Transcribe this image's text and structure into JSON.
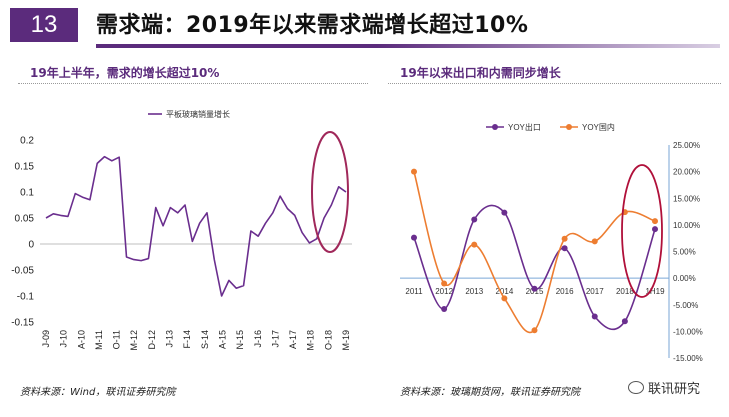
{
  "slide": {
    "number": "13",
    "title": "需求端：2019年以来需求端增长超过10%",
    "watermark": "联讯研究"
  },
  "panels": [
    {
      "title": "19年上半年，需求的增长超过10%",
      "source": "资料来源：Wind，联讯证券研究院"
    },
    {
      "title": "19年以来出口和内需同步增长",
      "source": "资料来源：玻璃期货网，联讯证券研究院"
    }
  ],
  "colors": {
    "accent": "#5b2b7c",
    "series_purple": "#6a2e8e",
    "series_orange": "#ed7d31",
    "highlight": "#a0285a",
    "ellipse_red": "#b0103a"
  },
  "chart_data": [
    {
      "type": "line",
      "title": "",
      "legend": "top-center",
      "series": [
        {
          "name": "平板玻璃销量增长",
          "values": [
            0.05,
            0.058,
            0.055,
            0.053,
            0.097,
            0.09,
            0.085,
            0.155,
            0.168,
            0.16,
            0.167,
            -0.025,
            -0.03,
            -0.032,
            -0.028,
            0.07,
            0.035,
            0.07,
            0.06,
            0.075,
            0.005,
            0.04,
            0.06,
            -0.03,
            -0.1,
            -0.07,
            -0.085,
            -0.08,
            0.025,
            0.015,
            0.04,
            0.06,
            0.092,
            0.068,
            0.055,
            0.022,
            0.002,
            0.01,
            0.05,
            0.075,
            0.11,
            0.1
          ]
        }
      ],
      "tick_labels": [
        "J-09",
        "J-10",
        "A-10",
        "M-11",
        "O-11",
        "M-12",
        "D-12",
        "J-13",
        "F-14",
        "S-14",
        "A-15",
        "N-15",
        "J-16",
        "J-17",
        "A-17",
        "M-18",
        "O-18",
        "M-19"
      ],
      "y_ticks": [
        "0.2",
        "0.15",
        "0.1",
        "0.05",
        "0",
        "-0.05",
        "-0.1",
        "-0.15"
      ],
      "ylim": [
        -0.15,
        0.2
      ]
    },
    {
      "type": "line",
      "title": "",
      "legend": "top-left",
      "categories": [
        "2011",
        "2012",
        "2013",
        "2014",
        "2015",
        "2016",
        "2017",
        "2018",
        "1H19"
      ],
      "series": [
        {
          "name": "YOY出口",
          "values": [
            7.6,
            -5.8,
            11.0,
            12.3,
            -2.0,
            5.6,
            -7.2,
            -8.1,
            9.2
          ]
        },
        {
          "name": "YOY国内",
          "values": [
            20.0,
            -1.0,
            6.3,
            -3.8,
            -9.8,
            7.4,
            6.9,
            12.4,
            10.7
          ]
        }
      ],
      "y_ticks": [
        "25.00%",
        "20.00%",
        "15.00%",
        "10.00%",
        "5.00%",
        "0.00%",
        "-5.00%",
        "-10.00%",
        "-15.00%"
      ],
      "ylim": [
        -15,
        25
      ]
    }
  ]
}
